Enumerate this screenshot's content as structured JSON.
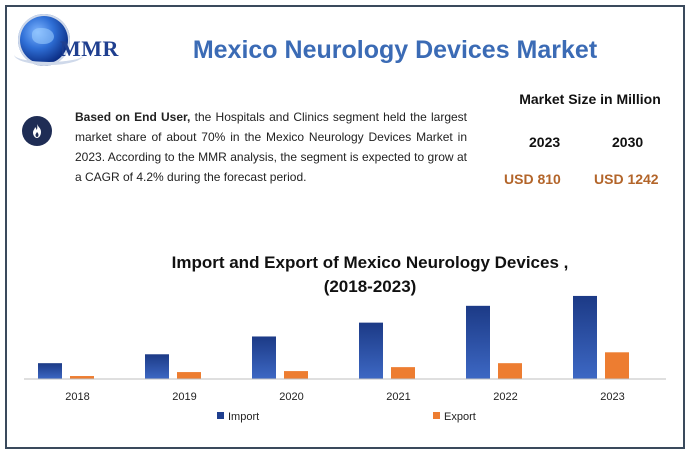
{
  "logo": {
    "text": "MMR"
  },
  "title": "Mexico Neurology Devices Market",
  "description": {
    "bold_lead": "Based on End User,",
    "body": " the Hospitals and Clinics segment held the largest market share of about 70% in the Mexico Neurology Devices Market in 2023. According to the MMR analysis, the segment is expected to grow at a CAGR of 4.2% during the forecast period."
  },
  "market_size": {
    "heading": "Market Size in Million",
    "years": [
      "2023",
      "2030"
    ],
    "values": [
      "USD 810",
      "USD 1242"
    ]
  },
  "chart_data": {
    "type": "bar",
    "title_line1": "Import and Export of Mexico Neurology Devices ,",
    "title_line2": "(2018-2023)",
    "categories": [
      "2018",
      "2019",
      "2020",
      "2021",
      "2022",
      "2023"
    ],
    "series": [
      {
        "name": "Import",
        "color": "#1f3f8f",
        "values": [
          16,
          25,
          43,
          57,
          74,
          84
        ]
      },
      {
        "name": "Export",
        "color": "#ed7d31",
        "values": [
          3,
          7,
          8,
          12,
          16,
          27
        ]
      }
    ],
    "ylim": [
      0,
      90
    ],
    "legend": "bottom-center",
    "grid": false
  }
}
